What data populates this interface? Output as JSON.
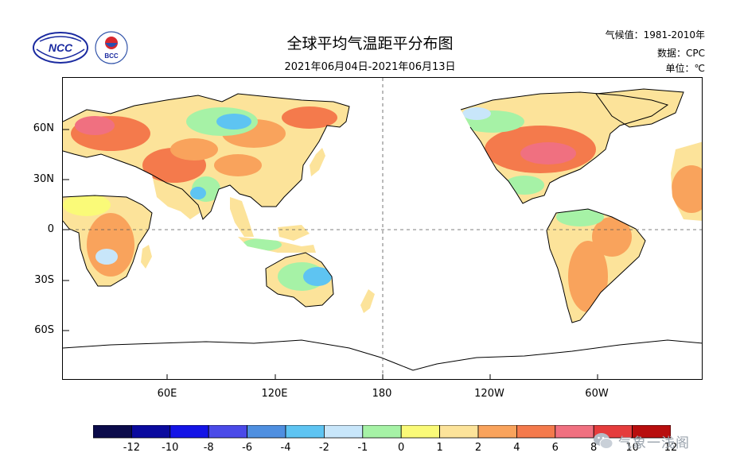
{
  "header": {
    "title": "全球平均气温距平分布图",
    "subtitle": "2021年06月04日-2021年06月13日",
    "climate_label": "气候值：1981-2010年",
    "data_label": "数据：CPC",
    "unit_label": "单位：℃"
  },
  "logos": {
    "ncc": {
      "text": "NCC",
      "icon": "ncc-logo-icon"
    },
    "bcc": {
      "text": "BCC",
      "icon": "bcc-logo-icon"
    }
  },
  "map": {
    "lat_labels": [
      "60N",
      "30N",
      "0",
      "30S",
      "60S"
    ],
    "lon_labels": [
      "60E",
      "120E",
      "180",
      "120W",
      "60W"
    ],
    "projection": "cylindrical, centered on 180"
  },
  "colorbar": {
    "labels": [
      "-12",
      "-10",
      "-8",
      "-6",
      "-4",
      "-2",
      "-1",
      "0",
      "1",
      "2",
      "4",
      "6",
      "8",
      "10",
      "12"
    ],
    "colors": [
      "#0b0b4a",
      "#0a0a9e",
      "#1414e6",
      "#4a4ae8",
      "#4f8fe0",
      "#5ec4f2",
      "#c8e6fa",
      "#a6f2a6",
      "#fafa78",
      "#fce39a",
      "#f9a35c",
      "#f47a4c",
      "#f07080",
      "#e53c3c",
      "#b80e0e"
    ]
  },
  "watermark": {
    "text": "气象一浅阁",
    "icon": "wechat-icon"
  }
}
